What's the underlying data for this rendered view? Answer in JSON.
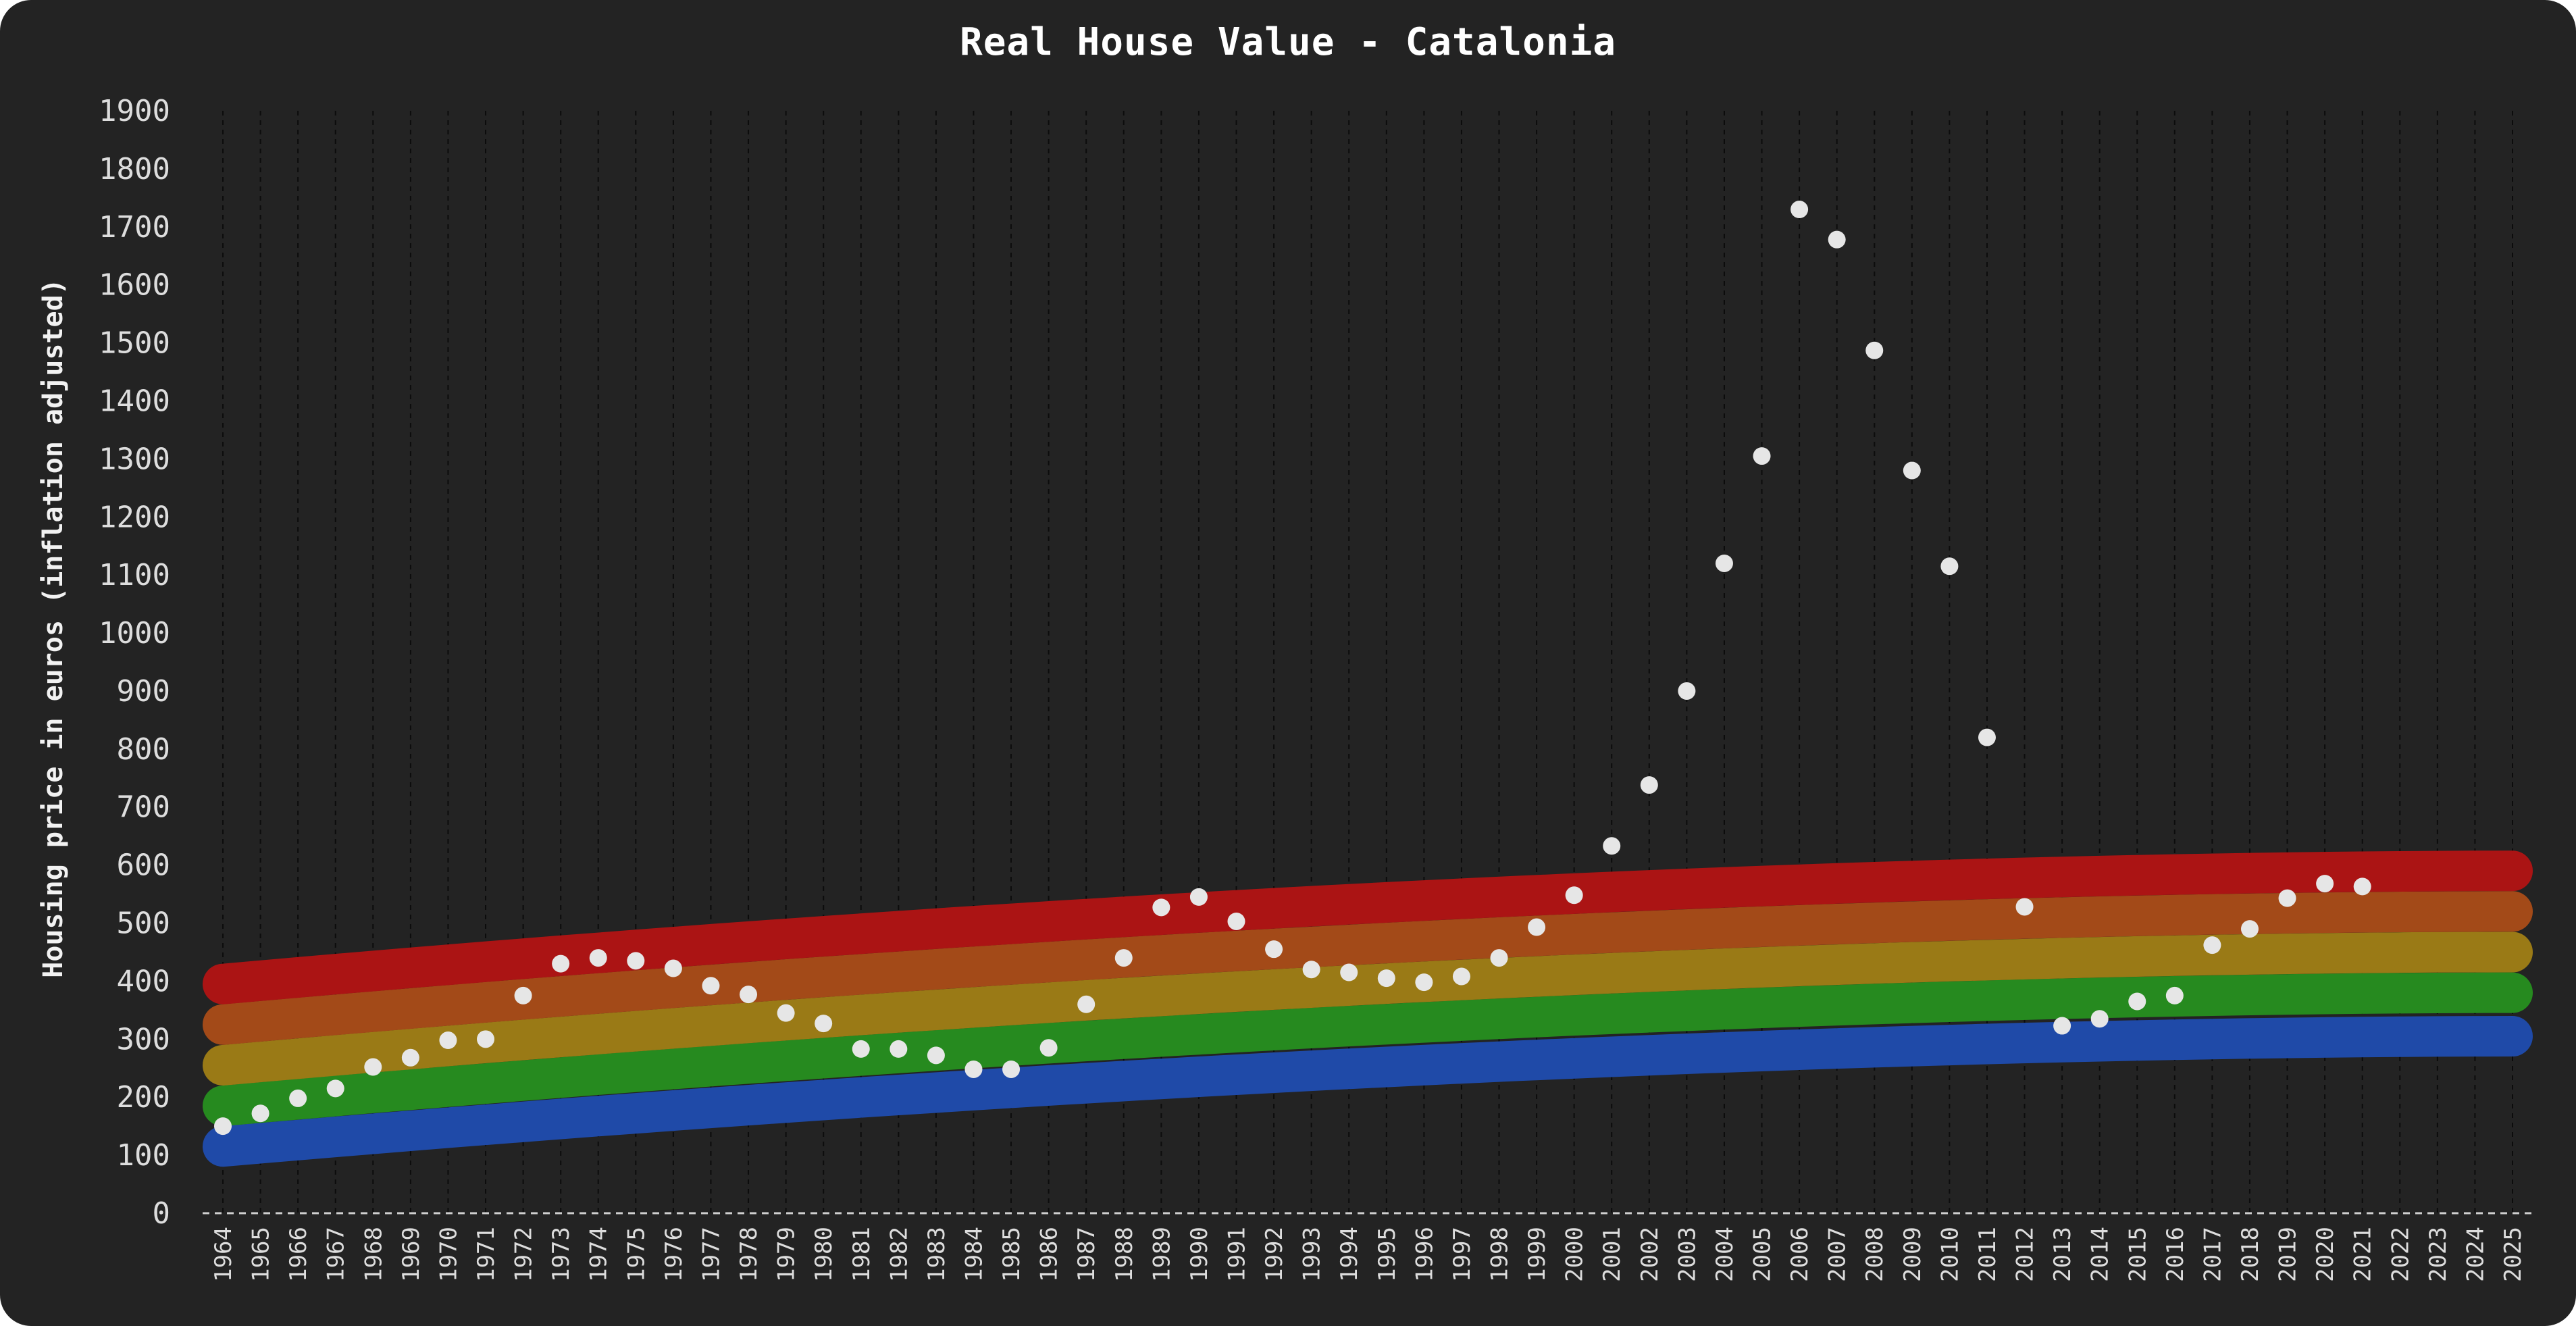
{
  "chart_data": {
    "type": "scatter",
    "title": "Real House Value - Catalonia",
    "xlabel": "",
    "ylabel": "Housing price in euros (inflation adjusted)",
    "xlim": [
      1964,
      2025
    ],
    "ylim": [
      0,
      1900
    ],
    "y_ticks": [
      0,
      100,
      200,
      300,
      400,
      500,
      600,
      700,
      800,
      900,
      1000,
      1100,
      1200,
      1300,
      1400,
      1500,
      1600,
      1700,
      1800,
      1900
    ],
    "x_ticks": [
      1964,
      1965,
      1966,
      1967,
      1968,
      1969,
      1970,
      1971,
      1972,
      1973,
      1974,
      1975,
      1976,
      1977,
      1978,
      1979,
      1980,
      1981,
      1982,
      1983,
      1984,
      1985,
      1986,
      1987,
      1988,
      1989,
      1990,
      1991,
      1992,
      1993,
      1994,
      1995,
      1996,
      1997,
      1998,
      1999,
      2000,
      2001,
      2002,
      2003,
      2004,
      2005,
      2006,
      2007,
      2008,
      2009,
      2010,
      2011,
      2012,
      2013,
      2014,
      2015,
      2016,
      2017,
      2018,
      2019,
      2020,
      2021,
      2022,
      2023,
      2024,
      2025
    ],
    "grid": "vertical dashed",
    "point_color": "#e6e6e6",
    "bands": [
      {
        "color": "#1f4aa8",
        "start": 115,
        "end": 305
      },
      {
        "color": "#268a1f",
        "start": 185,
        "end": 380
      },
      {
        "color": "#9a7a16",
        "start": 255,
        "end": 450
      },
      {
        "color": "#a34a18",
        "start": 325,
        "end": 520
      },
      {
        "color": "#ab1414",
        "start": 395,
        "end": 590
      }
    ],
    "series": [
      {
        "x": [
          1964,
          1965,
          1966,
          1967,
          1968,
          1969,
          1970,
          1971,
          1972,
          1973,
          1974,
          1975,
          1976,
          1977,
          1978,
          1979,
          1980,
          1981,
          1982,
          1983,
          1984,
          1985,
          1986,
          1987,
          1988,
          1989,
          1990,
          1991,
          1992,
          1993,
          1994,
          1995,
          1996,
          1997,
          1998,
          1999,
          2000,
          2001,
          2002,
          2003,
          2004,
          2005,
          2006,
          2007,
          2008,
          2009,
          2010,
          2011,
          2012,
          2013,
          2014,
          2015,
          2016,
          2017,
          2018,
          2019,
          2020,
          2021
        ],
        "y": [
          150,
          172,
          198,
          215,
          252,
          268,
          298,
          300,
          375,
          430,
          440,
          435,
          422,
          392,
          377,
          345,
          327,
          283,
          283,
          272,
          248,
          248,
          285,
          360,
          440,
          527,
          545,
          503,
          455,
          420,
          415,
          405,
          398,
          408,
          440,
          493,
          548,
          633,
          738,
          900,
          1120,
          1305,
          1730,
          1678,
          1487,
          1280,
          1115,
          820,
          528,
          323,
          335,
          365,
          375,
          462,
          490,
          543,
          568,
          563
        ]
      }
    ]
  }
}
